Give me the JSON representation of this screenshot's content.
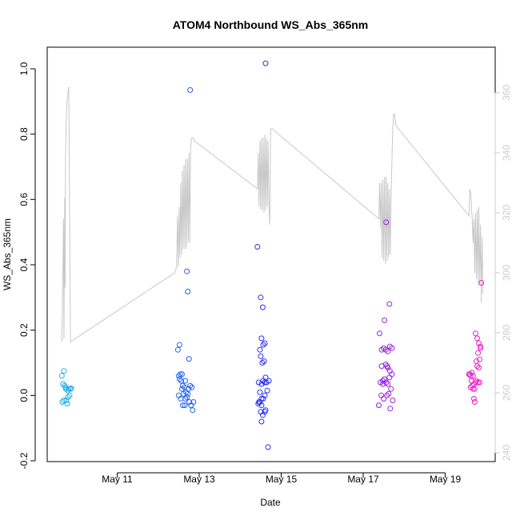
{
  "chart_data": {
    "type": "scatter",
    "title": "ATOM4 Northbound WS_Abs_365nm",
    "xlabel": "Date",
    "ylabel": "WS_Abs_365nm",
    "ylim": [
      -0.2,
      1.0
    ],
    "x_ticks": [
      {
        "day": 11,
        "label": "May 11"
      },
      {
        "day": 13,
        "label": "May 13"
      },
      {
        "day": 15,
        "label": "May 15"
      },
      {
        "day": 17,
        "label": "May 17"
      },
      {
        "day": 19,
        "label": "May 19"
      }
    ],
    "y_ticks": [
      -0.2,
      0.0,
      0.2,
      0.4,
      0.6,
      0.8,
      1.0
    ],
    "y_tick_labels": [
      "-0.2",
      "0.0",
      "0.2",
      "0.4",
      "0.6",
      "0.8",
      "1.0"
    ],
    "secondary_axis": {
      "ylim": [
        240,
        360
      ],
      "ticks": [
        240,
        260,
        280,
        300,
        320,
        340,
        360
      ],
      "tick_labels": [
        "240",
        "260",
        "280",
        "300",
        "320",
        "340",
        "360"
      ],
      "color": "#cccccc"
    },
    "grid": false,
    "legend": "none",
    "point_color_start": "#1fb4e6",
    "point_color_mid": "#2b2bf0",
    "point_color_end": "#ee22c8",
    "line_color": "#c8c8c8",
    "series": [
      {
        "kind": "points",
        "points": [
          [
            9.65,
            0.06
          ],
          [
            9.68,
            0.035
          ],
          [
            9.7,
            0.075
          ],
          [
            9.72,
            0.03
          ],
          [
            9.66,
            -0.02
          ],
          [
            9.74,
            0.025
          ],
          [
            9.76,
            -0.015
          ],
          [
            9.78,
            -0.025
          ],
          [
            9.8,
            -0.005
          ],
          [
            9.82,
            0.02
          ],
          [
            9.84,
            0.0
          ],
          [
            9.86,
            0.02
          ],
          [
            9.7,
            -0.015
          ],
          [
            9.75,
            0.02
          ],
          [
            9.8,
            0.015
          ],
          [
            9.88,
            0.022
          ],
          [
            12.48,
            0.14
          ],
          [
            12.52,
            0.155
          ],
          [
            12.5,
            0.06
          ],
          [
            12.54,
            0.065
          ],
          [
            12.56,
            0.045
          ],
          [
            12.58,
            0.02
          ],
          [
            12.6,
            0.03
          ],
          [
            12.62,
            0.005
          ],
          [
            12.64,
            0.025
          ],
          [
            12.66,
            -0.01
          ],
          [
            12.68,
            0.01
          ],
          [
            12.7,
            -0.005
          ],
          [
            12.72,
            0.005
          ],
          [
            12.74,
            0.02
          ],
          [
            12.76,
            -0.02
          ],
          [
            12.78,
            0.03
          ],
          [
            12.8,
            -0.03
          ],
          [
            12.82,
            0.025
          ],
          [
            12.84,
            -0.045
          ],
          [
            12.86,
            -0.02
          ],
          [
            12.5,
            0.0
          ],
          [
            12.55,
            -0.01
          ],
          [
            12.6,
            -0.03
          ],
          [
            12.65,
            -0.03
          ],
          [
            12.7,
            0.38
          ],
          [
            12.72,
            0.318
          ],
          [
            12.75,
            0.112
          ],
          [
            12.78,
            0.935
          ],
          [
            12.52,
            0.05
          ],
          [
            12.58,
            0.065
          ],
          [
            12.66,
            0.045
          ],
          [
            14.42,
            0.455
          ],
          [
            14.5,
            0.3
          ],
          [
            14.55,
            0.27
          ],
          [
            14.52,
            0.175
          ],
          [
            14.48,
            0.14
          ],
          [
            14.56,
            0.155
          ],
          [
            14.6,
            0.16
          ],
          [
            14.5,
            0.12
          ],
          [
            14.54,
            0.1
          ],
          [
            14.58,
            0.105
          ],
          [
            14.62,
            0.055
          ],
          [
            14.45,
            0.04
          ],
          [
            14.52,
            0.035
          ],
          [
            14.56,
            0.045
          ],
          [
            14.6,
            0.04
          ],
          [
            14.64,
            0.04
          ],
          [
            14.66,
            0.015
          ],
          [
            14.48,
            0.01
          ],
          [
            14.52,
            -0.01
          ],
          [
            14.56,
            -0.01
          ],
          [
            14.6,
            0.0
          ],
          [
            14.44,
            -0.025
          ],
          [
            14.48,
            -0.02
          ],
          [
            14.52,
            -0.03
          ],
          [
            14.5,
            -0.05
          ],
          [
            14.55,
            -0.06
          ],
          [
            14.6,
            -0.05
          ],
          [
            14.62,
            -0.045
          ],
          [
            14.52,
            -0.08
          ],
          [
            14.68,
            -0.158
          ],
          [
            14.62,
            1.017
          ],
          [
            14.46,
            -0.02
          ],
          [
            14.7,
            0.045
          ],
          [
            17.4,
            0.19
          ],
          [
            17.45,
            0.14
          ],
          [
            17.5,
            0.145
          ],
          [
            17.55,
            0.14
          ],
          [
            17.6,
            0.135
          ],
          [
            17.65,
            0.15
          ],
          [
            17.7,
            0.145
          ],
          [
            17.45,
            0.09
          ],
          [
            17.55,
            0.095
          ],
          [
            17.6,
            0.085
          ],
          [
            17.65,
            0.075
          ],
          [
            17.7,
            0.065
          ],
          [
            17.42,
            0.04
          ],
          [
            17.48,
            0.045
          ],
          [
            17.52,
            0.05
          ],
          [
            17.56,
            0.04
          ],
          [
            17.6,
            0.035
          ],
          [
            17.64,
            0.055
          ],
          [
            17.68,
            0.02
          ],
          [
            17.44,
            0.0
          ],
          [
            17.5,
            -0.01
          ],
          [
            17.58,
            0.0
          ],
          [
            17.62,
            0.005
          ],
          [
            17.38,
            -0.03
          ],
          [
            17.66,
            -0.04
          ],
          [
            17.72,
            -0.015
          ],
          [
            17.56,
            0.53
          ],
          [
            17.64,
            0.28
          ],
          [
            17.52,
            0.23
          ],
          [
            17.48,
            0.035
          ],
          [
            17.58,
            0.09
          ],
          [
            19.6,
            0.065
          ],
          [
            19.65,
            0.07
          ],
          [
            19.58,
            0.065
          ],
          [
            19.62,
            0.06
          ],
          [
            19.68,
            0.06
          ],
          [
            19.64,
            0.045
          ],
          [
            19.66,
            0.03
          ],
          [
            19.7,
            0.035
          ],
          [
            19.74,
            0.04
          ],
          [
            19.62,
            0.025
          ],
          [
            19.68,
            0.02
          ],
          [
            19.72,
            0.02
          ],
          [
            19.76,
            0.045
          ],
          [
            19.8,
            0.04
          ],
          [
            19.84,
            0.04
          ],
          [
            19.74,
            0.19
          ],
          [
            19.78,
            0.175
          ],
          [
            19.82,
            0.16
          ],
          [
            19.86,
            0.15
          ],
          [
            19.8,
            0.13
          ],
          [
            19.84,
            0.11
          ],
          [
            19.76,
            0.105
          ],
          [
            19.78,
            0.09
          ],
          [
            19.82,
            0.085
          ],
          [
            19.7,
            -0.01
          ],
          [
            19.72,
            -0.02
          ],
          [
            19.88,
            0.345
          ],
          [
            19.86,
            0.145
          ]
        ]
      },
      {
        "kind": "secondary_line",
        "points": [
          [
            9.65,
            277
          ],
          [
            9.67,
            295
          ],
          [
            9.69,
            318
          ],
          [
            9.7,
            278
          ],
          [
            9.71,
            300
          ],
          [
            9.72,
            325
          ],
          [
            9.73,
            295
          ],
          [
            9.74,
            338
          ],
          [
            9.76,
            352
          ],
          [
            9.78,
            358
          ],
          [
            9.82,
            362
          ],
          [
            9.84,
            318
          ],
          [
            9.86,
            277
          ],
          [
            12.4,
            300
          ],
          [
            12.45,
            302
          ],
          [
            12.47,
            319
          ],
          [
            12.49,
            302
          ],
          [
            12.51,
            322
          ],
          [
            12.53,
            305
          ],
          [
            12.55,
            330
          ],
          [
            12.57,
            306
          ],
          [
            12.59,
            334
          ],
          [
            12.61,
            308
          ],
          [
            12.63,
            336
          ],
          [
            12.65,
            308
          ],
          [
            12.67,
            338
          ],
          [
            12.69,
            308
          ],
          [
            12.71,
            338
          ],
          [
            12.73,
            310
          ],
          [
            12.75,
            340
          ],
          [
            12.77,
            310
          ],
          [
            12.79,
            341
          ],
          [
            12.81,
            345
          ],
          [
            12.86,
            345
          ],
          [
            12.88,
            344
          ],
          [
            14.42,
            328
          ],
          [
            14.44,
            340
          ],
          [
            14.46,
            322
          ],
          [
            14.48,
            344
          ],
          [
            14.5,
            321
          ],
          [
            14.52,
            345
          ],
          [
            14.54,
            321
          ],
          [
            14.56,
            345
          ],
          [
            14.58,
            320
          ],
          [
            14.6,
            346
          ],
          [
            14.62,
            321
          ],
          [
            14.64,
            345
          ],
          [
            14.66,
            322
          ],
          [
            14.68,
            344
          ],
          [
            14.7,
            323
          ],
          [
            14.72,
            316
          ],
          [
            14.74,
            348
          ],
          [
            14.78,
            348
          ],
          [
            17.38,
            318
          ],
          [
            17.4,
            330
          ],
          [
            17.42,
            315
          ],
          [
            17.44,
            330
          ],
          [
            17.46,
            305
          ],
          [
            17.48,
            331
          ],
          [
            17.5,
            304
          ],
          [
            17.52,
            332
          ],
          [
            17.54,
            303
          ],
          [
            17.56,
            332
          ],
          [
            17.58,
            304
          ],
          [
            17.6,
            330
          ],
          [
            17.62,
            305
          ],
          [
            17.64,
            328
          ],
          [
            17.66,
            306
          ],
          [
            17.68,
            325
          ],
          [
            17.72,
            348
          ],
          [
            17.74,
            353
          ],
          [
            17.76,
            353
          ],
          [
            17.8,
            349
          ],
          [
            19.58,
            319
          ],
          [
            19.6,
            328
          ],
          [
            19.62,
            327
          ],
          [
            19.64,
            322
          ],
          [
            19.66,
            318
          ],
          [
            19.68,
            310
          ],
          [
            19.7,
            318
          ],
          [
            19.72,
            300
          ],
          [
            19.74,
            320
          ],
          [
            19.76,
            298
          ],
          [
            19.78,
            321
          ],
          [
            19.8,
            297
          ],
          [
            19.82,
            322
          ],
          [
            19.84,
            296
          ],
          [
            19.86,
            316
          ],
          [
            19.88,
            290
          ],
          [
            19.9,
            312
          ],
          [
            19.92,
            293
          ]
        ]
      }
    ]
  }
}
